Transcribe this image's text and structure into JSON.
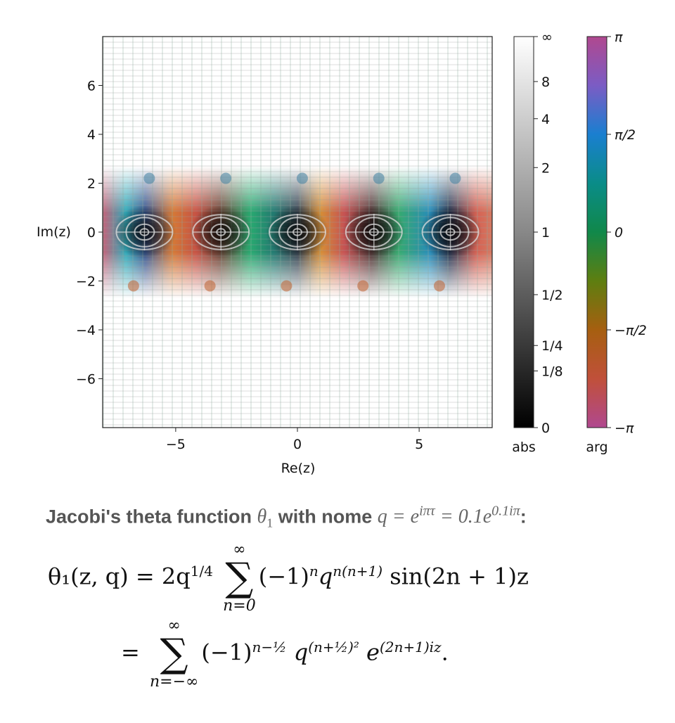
{
  "chart_data": {
    "type": "heatmap",
    "subtype": "domain-coloring",
    "xlabel": "Re(z)",
    "ylabel": "Im(z)",
    "xlim": [
      -8,
      8
    ],
    "ylim": [
      -8,
      8
    ],
    "xticks": [
      -5,
      0,
      5
    ],
    "xtick_labels": [
      "−5",
      "0",
      "5"
    ],
    "yticks": [
      6,
      4,
      2,
      0,
      -2,
      -4,
      -6
    ],
    "ytick_labels": [
      "6",
      "4",
      "2",
      "0",
      "−2",
      "−4",
      "−6"
    ],
    "zeros_re": [
      -6.283,
      -3.142,
      0,
      3.142,
      6.283
    ],
    "colorbar_abs": {
      "label": "abs",
      "ticks": [
        "∞",
        "8",
        "4",
        "2",
        "1",
        "1/2",
        "1/4",
        "1/8",
        "0"
      ]
    },
    "colorbar_arg": {
      "label": "arg",
      "ticks": [
        "π",
        "π/2",
        "0",
        "−π/2",
        "−π"
      ],
      "colors": [
        "#b0488f",
        "#7b5cc4",
        "#1a7fd0",
        "#0a8c88",
        "#10884a",
        "#5e7e10",
        "#a65f10",
        "#c0503a",
        "#b0488f"
      ]
    }
  },
  "caption": {
    "prefix": "Jacobi's theta function ",
    "theta": "θ",
    "theta_sub": "1",
    "mid": " with nome ",
    "formula": "q = e",
    "formula_exp": "iπτ",
    "formula2": " = 0.1e",
    "formula2_exp": "0.1iπ",
    "suffix": ":"
  },
  "equation1": {
    "lhs": "θ₁(z, q) = 2q",
    "lhs_exp": "1/4",
    "sum_top": "∞",
    "sum_bottom": "n=0",
    "term": "(−1)",
    "term_exp": "n",
    "term2": "q",
    "term2_exp": "n(n+1)",
    "term3": " sin(2n + 1)z"
  },
  "equation2": {
    "eq": "=",
    "sum_top": "∞",
    "sum_bottom": "n=−∞",
    "term": "(−1)",
    "term_exp": "n−½",
    "term2": "q",
    "term2_exp": "(n+½)²",
    "term3": "e",
    "term3_exp": "(2n+1)iz",
    "end": "."
  }
}
